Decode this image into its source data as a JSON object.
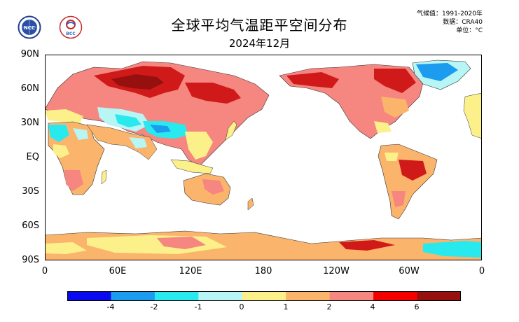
{
  "header": {
    "title": "全球平均气温距平空间分布",
    "subtitle": "2024年12月",
    "meta": {
      "climatology": "气候值：1991-2020年",
      "dataset": "数据：CRA40",
      "unit": "单位：°C"
    },
    "logos": {
      "left": "NCC",
      "right": "BCC"
    }
  },
  "map": {
    "y_ticks": [
      "90N",
      "60N",
      "30N",
      "EQ",
      "30S",
      "60S",
      "90S"
    ],
    "x_ticks": [
      "0",
      "60E",
      "120E",
      "180",
      "120W",
      "60W",
      "0"
    ]
  },
  "colorbar": {
    "labels": [
      "-4",
      "-2",
      "-1",
      "0",
      "1",
      "2",
      "4",
      "6"
    ],
    "colors": [
      "#0a0aee",
      "#1c9cee",
      "#28eaee",
      "#b8f5f5",
      "#fcf08a",
      "#fbb46c",
      "#f68680",
      "#f40000",
      "#961010"
    ]
  },
  "legend_colors": {
    "ocean": "#ffffff",
    "warm_strong": "#d01a1a",
    "warm": "#f68680",
    "mild": "#fbb46c",
    "slight": "#fcf08a",
    "cool": "#b8f5f5",
    "cold": "#28eaee",
    "very_cold": "#1c9cee"
  }
}
